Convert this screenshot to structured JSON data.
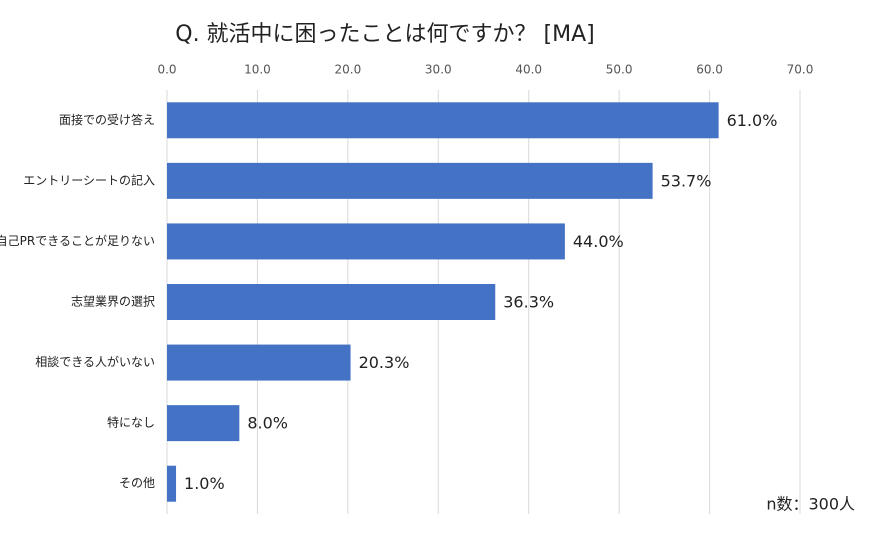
{
  "chart_data": {
    "type": "bar",
    "orientation": "horizontal",
    "title": "Q. 就活中に困ったことは何ですか？ [MA]",
    "annotation": "n数：300人",
    "categories": [
      "面接での受け答え",
      "エントリーシートの記入",
      "自己PRできることが足りない",
      "志望業界の選択",
      "相談できる人がいない",
      "特になし",
      "その他"
    ],
    "values": [
      61.0,
      53.7,
      44.0,
      36.3,
      20.3,
      8.0,
      1.0
    ],
    "value_labels": [
      "61.0%",
      "53.7%",
      "44.0%",
      "36.3%",
      "20.3%",
      "8.0%",
      "1.0%"
    ],
    "color": "#4472c4",
    "xlim": [
      0,
      70
    ],
    "xticks": [
      {
        "value": 0,
        "label": "0.0"
      },
      {
        "value": 10,
        "label": "10.0"
      },
      {
        "value": 20,
        "label": "20.0"
      },
      {
        "value": 30,
        "label": "30.0"
      },
      {
        "value": 40,
        "label": "40.0"
      },
      {
        "value": 50,
        "label": "50.0"
      },
      {
        "value": 60,
        "label": "60.0"
      },
      {
        "value": 70,
        "label": "70.0"
      }
    ],
    "grid": true
  }
}
